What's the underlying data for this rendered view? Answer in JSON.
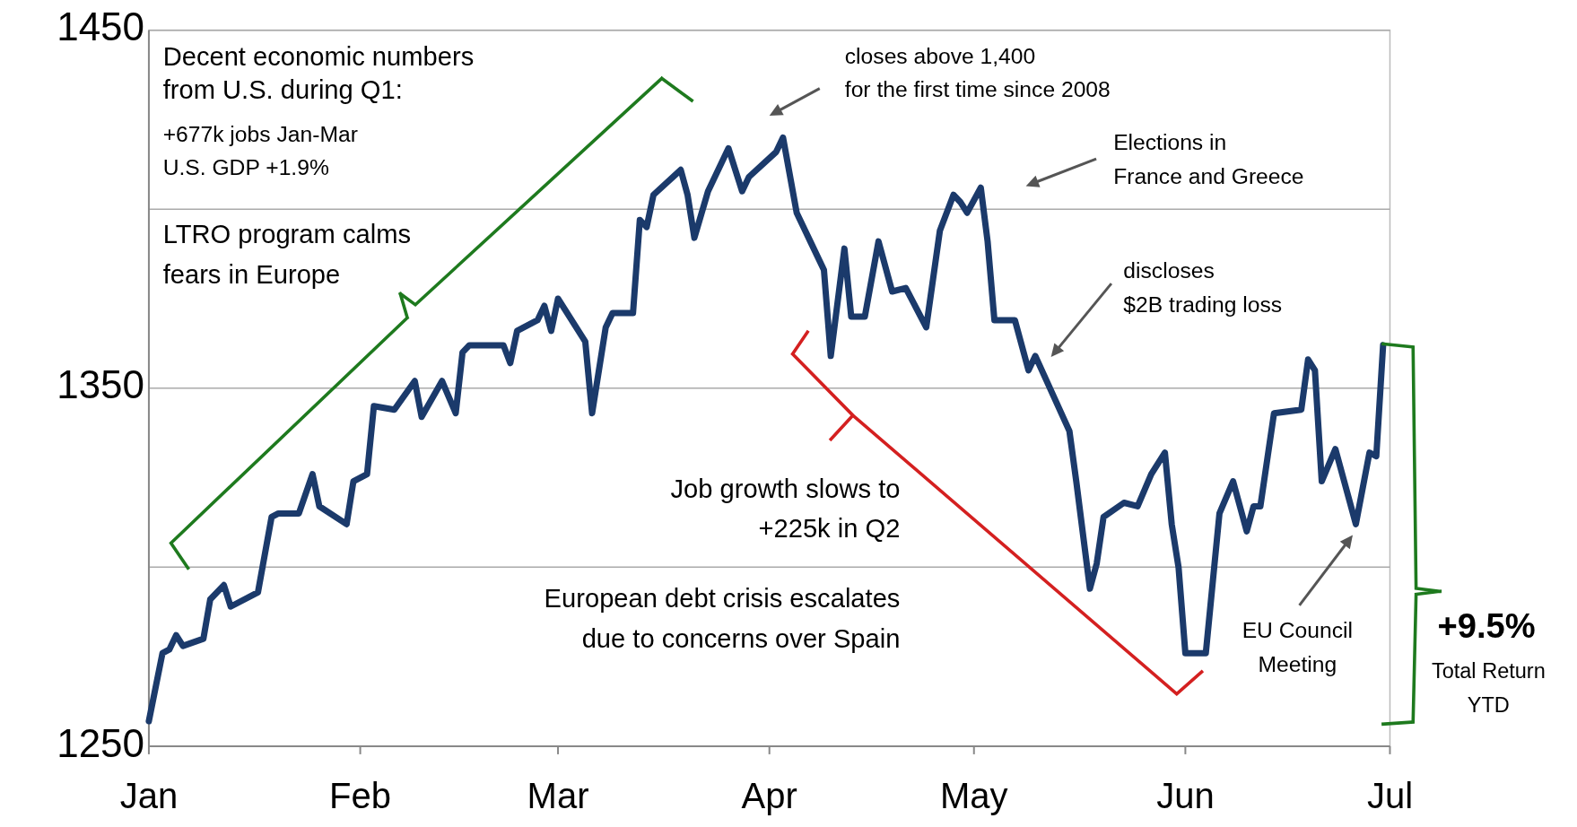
{
  "chart_data": {
    "type": "line",
    "xlim": [
      "--01-01",
      "--07-01"
    ],
    "xticks": [
      {
        "value": "--01-01",
        "label": "Jan"
      },
      {
        "value": "--02-01",
        "label": "Feb"
      },
      {
        "value": "--03-01",
        "label": "Mar"
      },
      {
        "value": "--04-01",
        "label": "Apr"
      },
      {
        "value": "--05-01",
        "label": "May"
      },
      {
        "value": "--06-01",
        "label": "Jun"
      },
      {
        "value": "--07-01",
        "label": "Jul"
      }
    ],
    "ylim": [
      1250,
      1450
    ],
    "yticks": [
      1250,
      {
        "value": 1300,
        "label": null
      },
      1350,
      {
        "value": 1400,
        "label": null
      },
      1450
    ],
    "grid": "y",
    "series": [
      {
        "color": "#1b3a6b",
        "x": [
          "--01-01",
          "--01-03",
          "--01-04",
          "--01-05",
          "--01-06",
          "--01-09",
          "--01-10",
          "--01-12",
          "--01-13",
          "--01-17",
          "--01-19",
          "--01-20",
          "--01-23",
          "--01-25",
          "--01-26",
          "--01-30",
          "--01-31",
          "--02-02",
          "--02-03",
          "--02-06",
          "--02-09",
          "--02-10",
          "--02-13",
          "--02-15",
          "--02-16",
          "--02-17",
          "--02-22",
          "--02-23",
          "--02-24",
          "--02-27",
          "--02-28",
          "--02-29",
          "--03-01",
          "--03-05",
          "--03-06",
          "--03-08",
          "--03-09",
          "--03-12",
          "--03-13",
          "--03-14",
          "--03-15",
          "--03-19",
          "--03-20",
          "--03-21",
          "--03-23",
          "--03-26",
          "--03-28",
          "--03-29",
          "--04-02",
          "--04-03",
          "--04-05",
          "--04-07",
          "--04-09",
          "--04-10",
          "--04-12",
          "--04-13",
          "--04-15",
          "--04-17",
          "--04-19",
          "--04-21",
          "--04-24",
          "--04-26",
          "--04-28",
          "--04-29",
          "--04-30",
          "--05-02",
          "--05-03",
          "--05-04",
          "--05-07",
          "--05-09",
          "--05-10",
          "--05-15",
          "--05-16",
          "--05-18",
          "--05-19",
          "--05-20",
          "--05-23",
          "--05-25",
          "--05-27",
          "--05-29",
          "--05-30",
          "--05-31",
          "--06-01",
          "--06-04",
          "--06-06",
          "--06-08",
          "--06-10",
          "--06-11",
          "--06-12",
          "--06-14",
          "--06-18",
          "--06-19",
          "--06-20",
          "--06-21",
          "--06-23",
          "--06-26",
          "--06-28",
          "--06-29",
          "--06-30"
        ],
        "values": [
          1257,
          1276,
          1277,
          1281,
          1278,
          1280,
          1291,
          1295,
          1289,
          1293,
          1314,
          1315,
          1315,
          1326,
          1317,
          1312,
          1324,
          1326,
          1345,
          1344,
          1352,
          1342,
          1352,
          1343,
          1360,
          1362,
          1362,
          1357,
          1366,
          1369,
          1373,
          1366,
          1375,
          1363,
          1343,
          1367,
          1371,
          1371,
          1397,
          1395,
          1404,
          1411,
          1404,
          1392,
          1405,
          1417,
          1405,
          1409,
          1416,
          1420,
          1399,
          1391,
          1383,
          1359,
          1389,
          1370,
          1370,
          1391,
          1377,
          1378,
          1367,
          1394,
          1404,
          1402,
          1399,
          1406,
          1391,
          1369,
          1369,
          1355,
          1359,
          1338,
          1324,
          1294,
          1301,
          1314,
          1318,
          1317,
          1326,
          1332,
          1312,
          1300,
          1276,
          1276,
          1315,
          1324,
          1310,
          1317,
          1317,
          1343,
          1344,
          1358,
          1355,
          1324,
          1333,
          1312,
          1332,
          1331,
          1362
        ]
      }
    ],
    "annotations": [
      "Decent economic numbers\nfrom U.S. during Q1:",
      "+677k jobs Jan-Mar\nU.S. GDP +1.9%",
      "LTRO program calms\nfears in Europe",
      "closes above 1,400\nfor the first time since 2008",
      "Elections in\nFrance and Greece",
      "discloses\n$2B trading loss",
      "Job growth slows to\n+225k in Q2",
      "European debt crisis escalates\ndue to concerns over Spain",
      "EU Council\nMeeting",
      "+9.5%",
      "Total Return\nYTD"
    ]
  }
}
